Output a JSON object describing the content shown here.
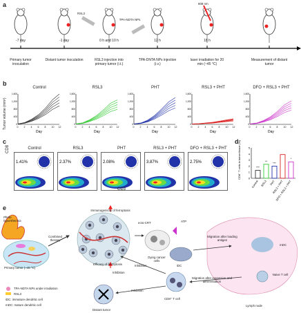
{
  "panel_labels": {
    "a": "a",
    "b": "b",
    "c": "c",
    "d": "d",
    "e": "e"
  },
  "timeline": {
    "days": [
      "-7 day",
      "-1 day",
      "0 h and 10 h",
      "12 h",
      "18 h"
    ],
    "events": [
      "Primary tumor inoculation",
      "Distant tumor inoculation",
      "RSL3 injection into primary tumor (i.t.)",
      "TPA-DNTA NPs injection (i.v.)",
      "laser irradiation for 20 min (~45 °C)",
      "Measurement of distant tumor"
    ],
    "syringe_label_rsl3": "RSL3",
    "syringe_label_np": "TPA-NDTA NPs",
    "laser_label": "808 nm"
  },
  "growth_charts": [
    {
      "title": "Control",
      "color": "#333333"
    },
    {
      "title": "RSL3",
      "color": "#33cc33"
    },
    {
      "title": "PHT",
      "color": "#2233aa"
    },
    {
      "title": "RSL3 + PHT",
      "color": "#dd2222"
    },
    {
      "title": "DFO + RSL3 + PHT",
      "color": "#cc33cc"
    }
  ],
  "growth_axes": {
    "ylabel": "Tumor volume (mm³)",
    "xlabel": "Day",
    "yticks": [
      "0",
      "400",
      "800",
      "1,200",
      "1,600"
    ],
    "xticks": [
      "0",
      "2",
      "4",
      "6",
      "8",
      "10",
      "12"
    ]
  },
  "chart_data": {
    "type": "line",
    "panel": "b",
    "x": [
      0,
      2,
      4,
      6,
      8,
      10,
      12
    ],
    "ylim": [
      0,
      1600
    ],
    "series": [
      {
        "name": "Control",
        "values": [
          20,
          80,
          220,
          420,
          700,
          1050,
          1300
        ]
      },
      {
        "name": "RSL3",
        "values": [
          20,
          70,
          200,
          380,
          620,
          900,
          1050
        ]
      },
      {
        "name": "PHT",
        "values": [
          20,
          60,
          180,
          380,
          650,
          950,
          1150
        ]
      },
      {
        "name": "RSL3 + PHT",
        "values": [
          20,
          30,
          60,
          90,
          140,
          190,
          240
        ]
      },
      {
        "name": "DFO + RSL3 + PHT",
        "values": [
          20,
          60,
          170,
          330,
          560,
          830,
          1000
        ]
      }
    ]
  },
  "flow": {
    "titles": [
      "Control",
      "RSL3",
      "PHT",
      "RSL3 + PHT",
      "DFO + RSL3 + PHT"
    ],
    "percents": [
      "1.41%",
      "2.37%",
      "2.08%",
      "3.87%",
      "2.75%"
    ],
    "xlabel": "CD3",
    "ylabel": "CD8"
  },
  "bar": {
    "ylabel": "CD8⁺ T cells in tumor tissue (%)",
    "yticks": [
      "0",
      "1",
      "2",
      "3",
      "4",
      "5"
    ],
    "categories": [
      "Control",
      "RSL3",
      "PHT",
      "RSL3 + PHT",
      "DFO + RSL3 + PHT"
    ],
    "values": [
      1.3,
      2.3,
      2.0,
      3.9,
      2.7
    ],
    "colors": [
      "#333333",
      "#33cc33",
      "#2233aa",
      "#dd2222",
      "#cc33cc"
    ],
    "sig": [
      "***",
      "**",
      "***",
      "",
      "*"
    ]
  },
  "schematic": {
    "photo": "Photo-hyperthermia",
    "combined": "Combined therapy",
    "primary": "Primary tumor (~45 °C)",
    "immuno": "Immunogenicity of ferroptosis",
    "efficacy": "Efficacy of ferroptosis",
    "inhibition1": "Inhibition",
    "inhibition2": "Inhibition",
    "inhibition3": "Inhibition",
    "ecto": "ecto-CRT",
    "atp": "ATP",
    "dying": "Dying cancer cells",
    "idc": "iDC",
    "mdc": "mDC",
    "migration1": "Migration after loading antigen",
    "migration2": "Migration after expansion and differentiation",
    "naive": "Naive T cell",
    "cd8": "CD8⁺ T cell",
    "distant": "Distant tumor",
    "lymph": "Lymph node",
    "legend": [
      "TPA-NDTA NPs under irradiation",
      "RSL3",
      "iDC: immature dendritic cell",
      "mDC: mature dendritic cell"
    ]
  }
}
